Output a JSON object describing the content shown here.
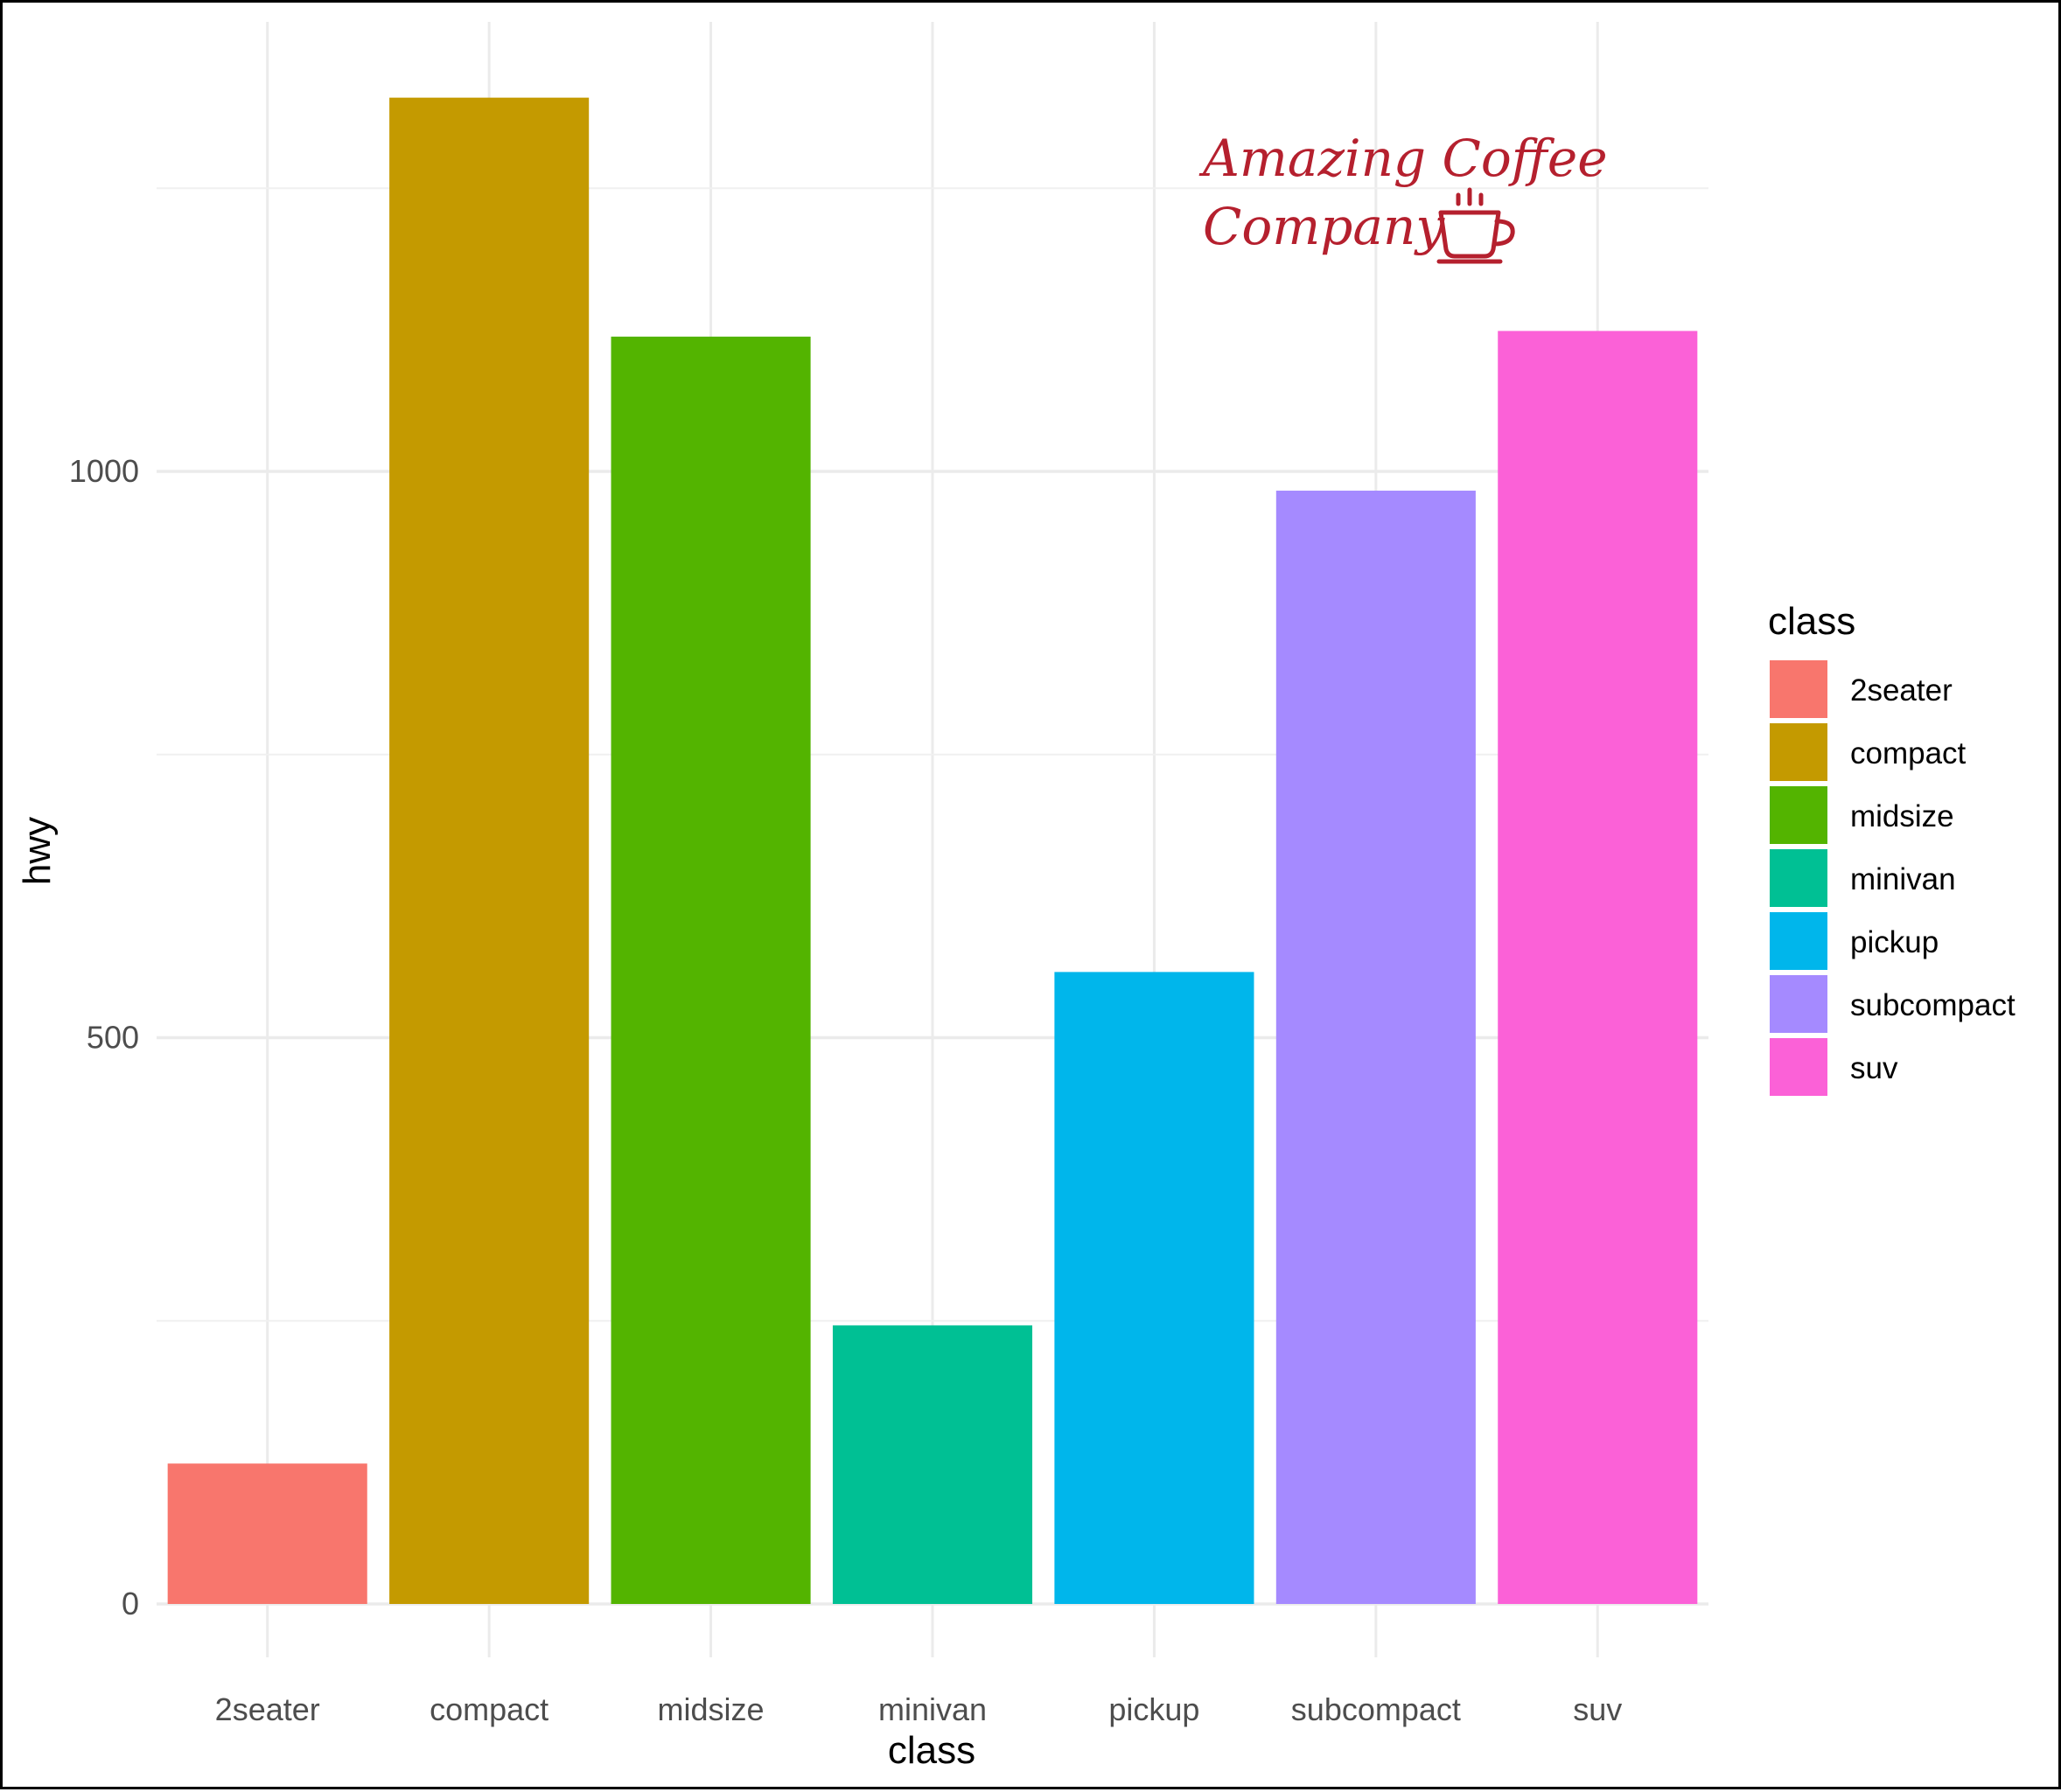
{
  "chart_data": {
    "type": "bar",
    "title": "",
    "xlabel": "class",
    "ylabel": "hwy",
    "categories": [
      "2seater",
      "compact",
      "midsize",
      "minivan",
      "pickup",
      "subcompact",
      "suv"
    ],
    "values": [
      124,
      1330,
      1119,
      246,
      558,
      983,
      1124
    ],
    "colors": [
      "#F8766D",
      "#C49A00",
      "#53B400",
      "#00C094",
      "#00B6EB",
      "#A58AFF",
      "#FB61D7"
    ],
    "ylim": [
      0,
      1330
    ],
    "yticks": [
      0,
      500,
      1000
    ],
    "yminor": [
      250,
      750,
      1250
    ],
    "grid": true,
    "legend": {
      "title": "class",
      "placement": "right",
      "entries": [
        "2seater",
        "compact",
        "midsize",
        "minivan",
        "pickup",
        "subcompact",
        "suv"
      ]
    }
  },
  "logo": {
    "line1": "Amazing Coffee",
    "line2": "Company",
    "icon": "coffee-cup-icon",
    "color": "#b5202e"
  }
}
